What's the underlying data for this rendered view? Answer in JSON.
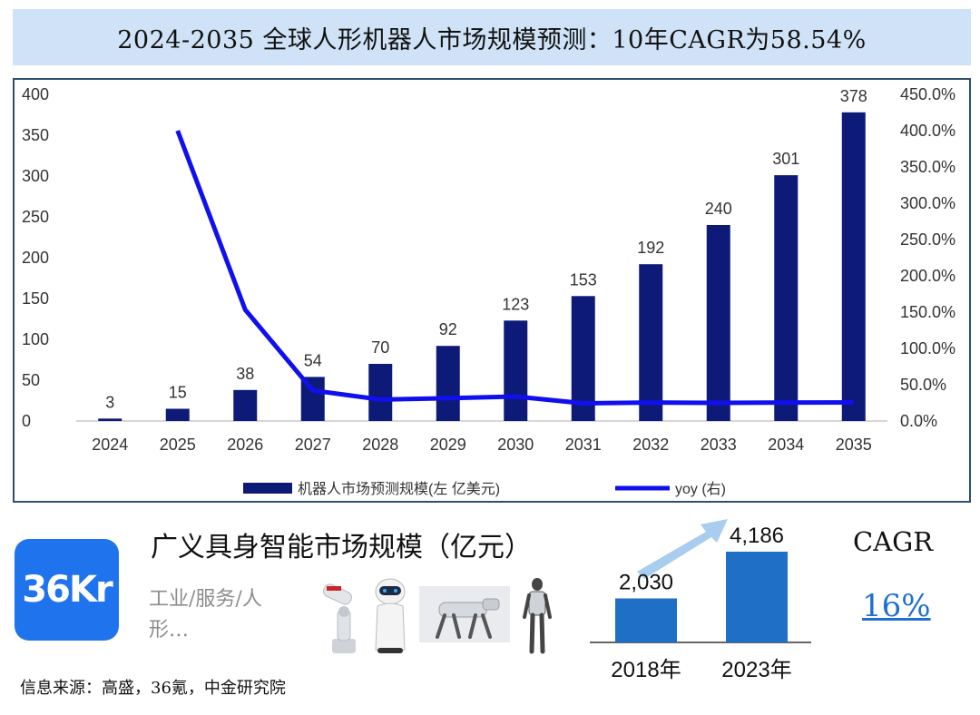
{
  "title": "2024-2035 全球人形机器人市场规模预测：10年CAGR为58.54%",
  "chart_data": [
    {
      "type": "bar+line",
      "categories": [
        "2024",
        "2025",
        "2026",
        "2027",
        "2028",
        "2029",
        "2030",
        "2031",
        "2032",
        "2033",
        "2034",
        "2035"
      ],
      "series": [
        {
          "name": "机器人市场预测规模(左 亿美元)",
          "type": "bar",
          "axis": "left",
          "color": "#0e1a78",
          "values": [
            3,
            15,
            38,
            54,
            70,
            92,
            123,
            153,
            192,
            240,
            301,
            378
          ],
          "labels": [
            "3",
            "15",
            "38",
            "54",
            "70",
            "92",
            "123",
            "153",
            "192",
            "240",
            "301",
            "378"
          ]
        },
        {
          "name": "yoy (右)",
          "type": "line",
          "axis": "right",
          "color": "#1010ee",
          "values": [
            null,
            400.0,
            153.3,
            42.1,
            29.6,
            31.4,
            33.7,
            24.4,
            25.5,
            25.0,
            25.4,
            25.6
          ]
        }
      ],
      "left_axis": {
        "ylim": [
          0,
          400
        ],
        "ticks": [
          "0",
          "50",
          "100",
          "150",
          "200",
          "250",
          "300",
          "350",
          "400"
        ]
      },
      "right_axis": {
        "ylim": [
          0,
          450
        ],
        "ticks": [
          "0.0%",
          "50.0%",
          "100.0%",
          "150.0%",
          "200.0%",
          "250.0%",
          "300.0%",
          "350.0%",
          "400.0%",
          "450.0%"
        ]
      },
      "grid": false,
      "legend_position": "bottom"
    },
    {
      "type": "bar",
      "title": "广义具身智能市场规模（亿元）",
      "categories": [
        "2018年",
        "2023年"
      ],
      "values": [
        2030,
        4186
      ],
      "labels": [
        "2,030",
        "4,186"
      ],
      "color": "#1f6fc6"
    }
  ],
  "embodied": {
    "title": "广义具身智能市场规模（亿元）",
    "subtitle": "工业/服务/人形…",
    "cagr_label": "CAGR",
    "cagr_value": "16%"
  },
  "logo_text": "36Kr",
  "source": "信息来源：高盛，36氪，中金研究院",
  "colors": {
    "banner": "#cfe2f7",
    "bar": "#0e1a78",
    "line": "#1010ee",
    "small_bar": "#1f6fc6",
    "arrow": "#a9cdee",
    "logo": "#1f74ee"
  },
  "icons": [
    "industrial-robot-arm-icon",
    "service-robot-icon",
    "robot-dog-icon",
    "humanoid-robot-icon",
    "growth-arrow-icon"
  ]
}
